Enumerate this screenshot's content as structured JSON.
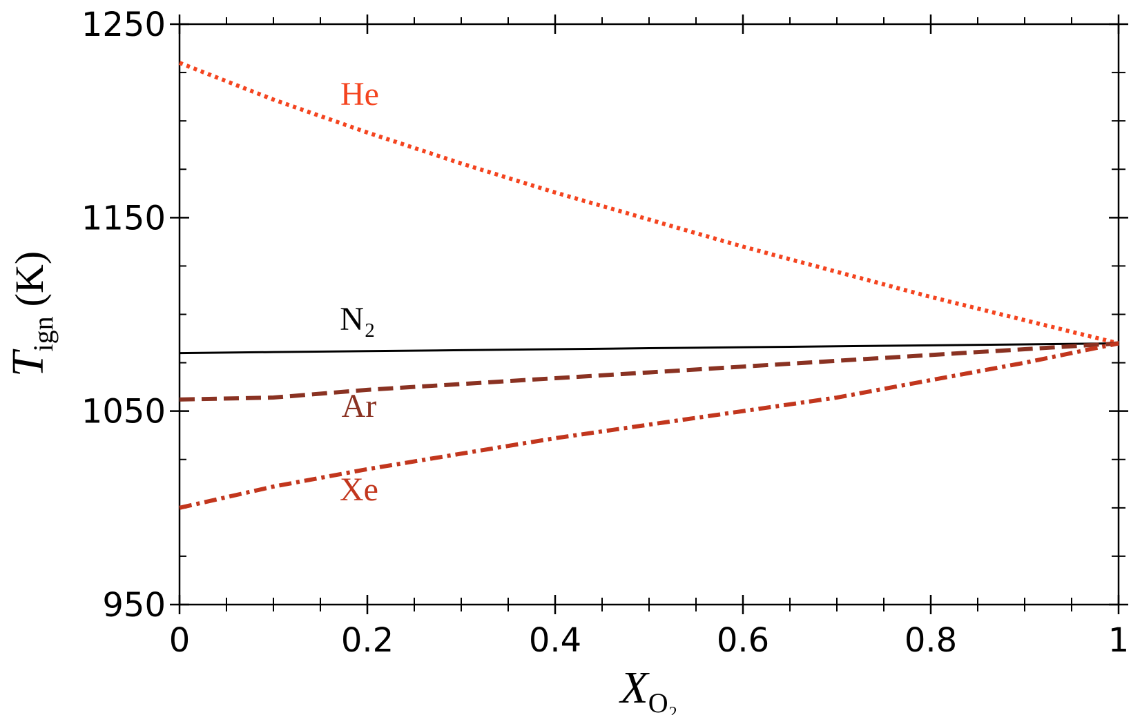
{
  "chart_data": {
    "type": "line",
    "ylabel": {
      "main": "T",
      "sub": "ign",
      "rest": "(K)"
    },
    "xlabel": {
      "main": "X",
      "sub": "O₂"
    },
    "x": [
      0,
      0.1,
      0.2,
      0.3,
      0.4,
      0.5,
      0.6,
      0.7,
      0.8,
      0.9,
      1
    ],
    "series": [
      {
        "name": "He",
        "color": "#f4441f",
        "dash": "dotted",
        "values": [
          1230,
          1211,
          1194,
          1178,
          1163,
          1149,
          1135,
          1122,
          1109,
          1097,
          1085
        ]
      },
      {
        "name": "N₂",
        "color": "#000000",
        "dash": "solid",
        "values": [
          1080,
          1080.5,
          1081,
          1081.5,
          1082,
          1082.5,
          1083,
          1083.5,
          1084,
          1084.5,
          1085
        ]
      },
      {
        "name": "Ar",
        "color": "#8a3222",
        "dash": "dashed",
        "values": [
          1056,
          1057,
          1061,
          1064,
          1067,
          1070,
          1073,
          1076,
          1079,
          1082,
          1085
        ]
      },
      {
        "name": "Xe",
        "color": "#c2361d",
        "dash": "dashdot",
        "values": [
          1000,
          1011,
          1020,
          1028,
          1036,
          1043,
          1050,
          1057,
          1066,
          1075,
          1085
        ]
      }
    ],
    "xlim": [
      0,
      1
    ],
    "xticks": [
      0,
      0.2,
      0.4,
      0.6,
      0.8,
      1
    ],
    "xminorticks": [
      0.05,
      0.1,
      0.15,
      0.25,
      0.3,
      0.35,
      0.45,
      0.5,
      0.55,
      0.65,
      0.7,
      0.75,
      0.85,
      0.9,
      0.95
    ],
    "ylim": [
      950,
      1250
    ],
    "yticks": [
      950,
      1050,
      1150,
      1250
    ],
    "yminorticks": [
      975,
      1000,
      1025,
      1075,
      1100,
      1125,
      1175,
      1200,
      1225
    ]
  }
}
